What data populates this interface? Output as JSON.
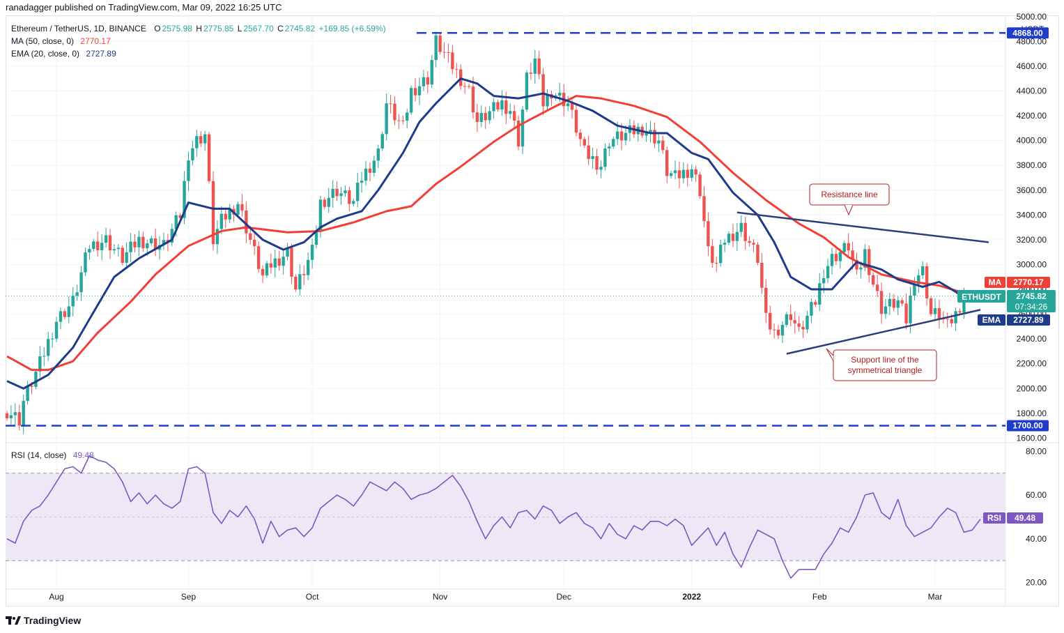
{
  "header": {
    "published": "ranadagger published on TradingView.com, Mar 09, 2022 16:25 UTC"
  },
  "legend": {
    "symbol": "Ethereum / TetherUS, 1D, BINANCE",
    "o_label": "O",
    "o": "2575.98",
    "h_label": "H",
    "h": "2775.85",
    "l_label": "L",
    "l": "2567.70",
    "c_label": "C",
    "c": "2745.82",
    "change": "+169.85 (+6.59%)",
    "ma_label": "MA (50, close, 0)",
    "ma_value": "2770.17",
    "ema_label": "EMA (20, close, 0)",
    "ema_value": "2727.89",
    "rsi_label": "RSI (14, close)",
    "rsi_value": "49.48"
  },
  "colors": {
    "up": "#26a69a",
    "down": "#ef5350",
    "ema": "#1e3a8a",
    "ma": "#f23f36",
    "trend": "#2c3e7a",
    "level": "#1f3ccc",
    "rsi": "#7e57c2",
    "rsi_band": "#ede7f6"
  },
  "badges": {
    "currency": "USDT",
    "top_level": "4868.00",
    "bottom_level": "1700.00",
    "ma_tag": "MA",
    "ma_val": "2770.17",
    "sym_tag": "ETHUSDT",
    "sym_val": "2745.82",
    "countdown": "07:34:26",
    "ema_tag": "EMA",
    "ema_val": "2727.89",
    "rsi_tag": "RSI",
    "rsi_val": "49.48"
  },
  "annotations": {
    "resistance": "Resistance line",
    "support_1": "Support line of the",
    "support_2": "symmetrical triangle"
  },
  "footer": {
    "brand": "TradingView"
  },
  "chart_data": {
    "type": "candlestick",
    "title": "Ethereum / TetherUS, 1D, BINANCE",
    "price_axis": {
      "ticks": [
        "5000.00",
        "4800.00",
        "4600.00",
        "4400.00",
        "4200.00",
        "4000.00",
        "3800.00",
        "3600.00",
        "3400.00",
        "3200.00",
        "3000.00",
        "2800.00",
        "2600.00",
        "2400.00",
        "2200.00",
        "2000.00",
        "1800.00",
        "1600.00"
      ],
      "ylim": [
        1580,
        5010
      ]
    },
    "rsi_axis": {
      "ticks": [
        "80.00",
        "60.00",
        "40.00",
        "20.00"
      ],
      "ylim": [
        17,
        83
      ],
      "band": [
        30,
        70
      ]
    },
    "x_ticks": [
      "Aug",
      "Sep",
      "Oct",
      "Nov",
      "Dec",
      "2022",
      "Feb",
      "Mar"
    ],
    "x_tick_days": [
      12,
      44,
      74,
      105,
      135,
      166,
      197,
      225
    ],
    "levels": [
      4868,
      1700
    ],
    "resistance_line": {
      "from": [
        177,
        3420
      ],
      "to": [
        238,
        3180
      ]
    },
    "support_line": {
      "from": [
        189,
        2280
      ],
      "to": [
        236,
        2635
      ]
    },
    "ma_path": [
      [
        0,
        2260
      ],
      [
        6,
        2150
      ],
      [
        10,
        2150
      ],
      [
        16,
        2220
      ],
      [
        22,
        2450
      ],
      [
        30,
        2700
      ],
      [
        36,
        2920
      ],
      [
        44,
        3150
      ],
      [
        52,
        3270
      ],
      [
        58,
        3300
      ],
      [
        68,
        3260
      ],
      [
        76,
        3270
      ],
      [
        84,
        3340
      ],
      [
        92,
        3430
      ],
      [
        98,
        3470
      ],
      [
        104,
        3650
      ],
      [
        110,
        3790
      ],
      [
        118,
        3990
      ],
      [
        124,
        4120
      ],
      [
        132,
        4260
      ],
      [
        138,
        4360
      ],
      [
        144,
        4340
      ],
      [
        152,
        4280
      ],
      [
        160,
        4190
      ],
      [
        168,
        3990
      ],
      [
        176,
        3740
      ],
      [
        184,
        3520
      ],
      [
        192,
        3330
      ],
      [
        198,
        3220
      ],
      [
        204,
        3060
      ],
      [
        212,
        2920
      ],
      [
        220,
        2860
      ],
      [
        226,
        2830
      ],
      [
        232,
        2770
      ]
    ],
    "ema_path": [
      [
        0,
        2060
      ],
      [
        4,
        2000
      ],
      [
        10,
        2110
      ],
      [
        16,
        2330
      ],
      [
        20,
        2560
      ],
      [
        26,
        2900
      ],
      [
        32,
        3050
      ],
      [
        40,
        3200
      ],
      [
        44,
        3500
      ],
      [
        50,
        3450
      ],
      [
        54,
        3450
      ],
      [
        62,
        3200
      ],
      [
        67,
        3120
      ],
      [
        72,
        3180
      ],
      [
        76,
        3300
      ],
      [
        80,
        3370
      ],
      [
        86,
        3430
      ],
      [
        90,
        3600
      ],
      [
        96,
        3900
      ],
      [
        100,
        4150
      ],
      [
        104,
        4300
      ],
      [
        110,
        4500
      ],
      [
        114,
        4460
      ],
      [
        118,
        4360
      ],
      [
        124,
        4340
      ],
      [
        130,
        4380
      ],
      [
        136,
        4320
      ],
      [
        142,
        4240
      ],
      [
        148,
        4120
      ],
      [
        156,
        4060
      ],
      [
        160,
        4060
      ],
      [
        166,
        3900
      ],
      [
        170,
        3850
      ],
      [
        176,
        3580
      ],
      [
        182,
        3400
      ],
      [
        186,
        3180
      ],
      [
        190,
        2900
      ],
      [
        195,
        2800
      ],
      [
        200,
        2800
      ],
      [
        206,
        3020
      ],
      [
        212,
        2960
      ],
      [
        216,
        2880
      ],
      [
        222,
        2820
      ],
      [
        226,
        2860
      ],
      [
        230,
        2780
      ],
      [
        232,
        2730
      ]
    ],
    "rsi": [
      [
        0,
        40
      ],
      [
        2,
        38
      ],
      [
        4,
        48
      ],
      [
        6,
        53
      ],
      [
        8,
        55
      ],
      [
        10,
        60
      ],
      [
        12,
        66
      ],
      [
        14,
        72
      ],
      [
        16,
        73
      ],
      [
        18,
        70
      ],
      [
        20,
        78
      ],
      [
        22,
        76
      ],
      [
        24,
        75
      ],
      [
        26,
        72
      ],
      [
        28,
        66
      ],
      [
        30,
        57
      ],
      [
        32,
        61
      ],
      [
        34,
        56
      ],
      [
        36,
        60
      ],
      [
        38,
        56
      ],
      [
        40,
        54
      ],
      [
        42,
        57
      ],
      [
        44,
        72
      ],
      [
        46,
        73
      ],
      [
        48,
        70
      ],
      [
        50,
        52
      ],
      [
        52,
        47
      ],
      [
        54,
        53
      ],
      [
        56,
        50
      ],
      [
        58,
        55
      ],
      [
        60,
        49
      ],
      [
        62,
        38
      ],
      [
        64,
        48
      ],
      [
        66,
        41
      ],
      [
        68,
        44
      ],
      [
        70,
        45
      ],
      [
        72,
        41
      ],
      [
        74,
        45
      ],
      [
        76,
        54
      ],
      [
        78,
        57
      ],
      [
        80,
        60
      ],
      [
        82,
        58
      ],
      [
        84,
        55
      ],
      [
        86,
        60
      ],
      [
        88,
        66
      ],
      [
        90,
        64
      ],
      [
        92,
        62
      ],
      [
        94,
        66
      ],
      [
        96,
        63
      ],
      [
        98,
        58
      ],
      [
        100,
        60
      ],
      [
        102,
        61
      ],
      [
        104,
        63
      ],
      [
        106,
        66
      ],
      [
        108,
        69
      ],
      [
        110,
        64
      ],
      [
        112,
        57
      ],
      [
        114,
        48
      ],
      [
        116,
        40
      ],
      [
        118,
        46
      ],
      [
        120,
        50
      ],
      [
        122,
        45
      ],
      [
        124,
        52
      ],
      [
        126,
        53
      ],
      [
        128,
        49
      ],
      [
        130,
        55
      ],
      [
        132,
        53
      ],
      [
        134,
        47
      ],
      [
        136,
        50
      ],
      [
        138,
        52
      ],
      [
        140,
        47
      ],
      [
        142,
        45
      ],
      [
        144,
        40
      ],
      [
        146,
        47
      ],
      [
        148,
        42
      ],
      [
        150,
        40
      ],
      [
        152,
        46
      ],
      [
        154,
        44
      ],
      [
        156,
        48
      ],
      [
        158,
        48
      ],
      [
        160,
        46
      ],
      [
        162,
        49
      ],
      [
        164,
        46
      ],
      [
        166,
        37
      ],
      [
        168,
        41
      ],
      [
        170,
        45
      ],
      [
        172,
        37
      ],
      [
        174,
        43
      ],
      [
        176,
        33
      ],
      [
        178,
        27
      ],
      [
        180,
        36
      ],
      [
        182,
        44
      ],
      [
        184,
        42
      ],
      [
        186,
        40
      ],
      [
        188,
        30
      ],
      [
        190,
        22
      ],
      [
        192,
        26
      ],
      [
        194,
        26
      ],
      [
        196,
        26
      ],
      [
        198,
        33
      ],
      [
        200,
        38
      ],
      [
        202,
        45
      ],
      [
        204,
        43
      ],
      [
        206,
        50
      ],
      [
        208,
        60
      ],
      [
        210,
        61
      ],
      [
        212,
        52
      ],
      [
        214,
        49
      ],
      [
        216,
        58
      ],
      [
        218,
        46
      ],
      [
        220,
        41
      ],
      [
        222,
        43
      ],
      [
        224,
        45
      ],
      [
        226,
        50
      ],
      [
        228,
        54
      ],
      [
        230,
        52
      ],
      [
        232,
        43
      ],
      [
        234,
        44
      ],
      [
        236,
        49
      ]
    ],
    "candles": []
  }
}
